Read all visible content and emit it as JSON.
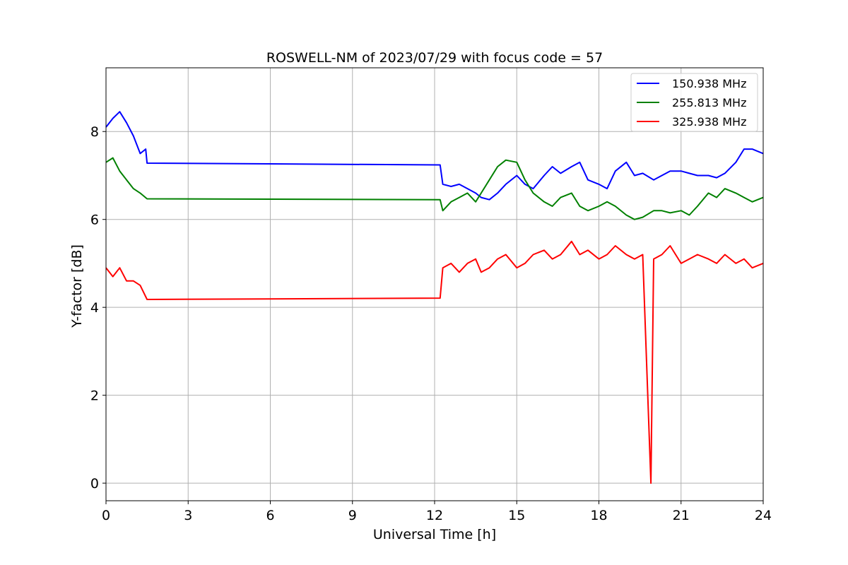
{
  "chart_data": {
    "type": "line",
    "title": "ROSWELL-NM of 2023/07/29 with focus code = 57",
    "xlabel": "Universal Time [h]",
    "ylabel": "Y-factor [dB]",
    "xlim": [
      0,
      24
    ],
    "ylim": [
      -0.4,
      9.45
    ],
    "x_ticks": [
      0,
      3,
      6,
      9,
      12,
      15,
      18,
      21,
      24
    ],
    "y_ticks": [
      0,
      2,
      4,
      6,
      8
    ],
    "grid": true,
    "legend_position": "top-right",
    "series": [
      {
        "name": "150.938 MHz",
        "color": "#0000ff",
        "points": [
          [
            0.0,
            8.1
          ],
          [
            0.25,
            8.3
          ],
          [
            0.5,
            8.45
          ],
          [
            0.75,
            8.2
          ],
          [
            1.0,
            7.9
          ],
          [
            1.25,
            7.5
          ],
          [
            1.45,
            7.6
          ],
          [
            1.5,
            7.28
          ],
          [
            12.2,
            7.24
          ],
          [
            12.3,
            6.8
          ],
          [
            12.6,
            6.75
          ],
          [
            12.9,
            6.8
          ],
          [
            13.2,
            6.7
          ],
          [
            13.5,
            6.6
          ],
          [
            13.7,
            6.5
          ],
          [
            14.0,
            6.45
          ],
          [
            14.3,
            6.6
          ],
          [
            14.6,
            6.8
          ],
          [
            15.0,
            7.0
          ],
          [
            15.3,
            6.8
          ],
          [
            15.6,
            6.7
          ],
          [
            16.0,
            7.0
          ],
          [
            16.3,
            7.2
          ],
          [
            16.6,
            7.05
          ],
          [
            17.0,
            7.2
          ],
          [
            17.3,
            7.3
          ],
          [
            17.6,
            6.9
          ],
          [
            18.0,
            6.8
          ],
          [
            18.3,
            6.7
          ],
          [
            18.6,
            7.1
          ],
          [
            19.0,
            7.3
          ],
          [
            19.3,
            7.0
          ],
          [
            19.6,
            7.05
          ],
          [
            20.0,
            6.9
          ],
          [
            20.3,
            7.0
          ],
          [
            20.6,
            7.1
          ],
          [
            21.0,
            7.1
          ],
          [
            21.3,
            7.05
          ],
          [
            21.6,
            7.0
          ],
          [
            22.0,
            7.0
          ],
          [
            22.3,
            6.95
          ],
          [
            22.6,
            7.05
          ],
          [
            23.0,
            7.3
          ],
          [
            23.3,
            7.6
          ],
          [
            23.6,
            7.6
          ],
          [
            24.0,
            7.5
          ]
        ]
      },
      {
        "name": "255.813 MHz",
        "color": "#008000",
        "points": [
          [
            0.0,
            7.3
          ],
          [
            0.25,
            7.4
          ],
          [
            0.5,
            7.1
          ],
          [
            0.75,
            6.9
          ],
          [
            1.0,
            6.7
          ],
          [
            1.25,
            6.6
          ],
          [
            1.5,
            6.47
          ],
          [
            12.2,
            6.45
          ],
          [
            12.3,
            6.2
          ],
          [
            12.6,
            6.4
          ],
          [
            12.9,
            6.5
          ],
          [
            13.2,
            6.6
          ],
          [
            13.5,
            6.4
          ],
          [
            13.7,
            6.6
          ],
          [
            14.0,
            6.9
          ],
          [
            14.3,
            7.2
          ],
          [
            14.6,
            7.35
          ],
          [
            15.0,
            7.3
          ],
          [
            15.3,
            6.9
          ],
          [
            15.6,
            6.6
          ],
          [
            16.0,
            6.4
          ],
          [
            16.3,
            6.3
          ],
          [
            16.6,
            6.5
          ],
          [
            17.0,
            6.6
          ],
          [
            17.3,
            6.3
          ],
          [
            17.6,
            6.2
          ],
          [
            18.0,
            6.3
          ],
          [
            18.3,
            6.4
          ],
          [
            18.6,
            6.3
          ],
          [
            19.0,
            6.1
          ],
          [
            19.3,
            6.0
          ],
          [
            19.6,
            6.05
          ],
          [
            20.0,
            6.2
          ],
          [
            20.3,
            6.2
          ],
          [
            20.6,
            6.15
          ],
          [
            21.0,
            6.2
          ],
          [
            21.3,
            6.1
          ],
          [
            21.6,
            6.3
          ],
          [
            22.0,
            6.6
          ],
          [
            22.3,
            6.5
          ],
          [
            22.6,
            6.7
          ],
          [
            23.0,
            6.6
          ],
          [
            23.3,
            6.5
          ],
          [
            23.6,
            6.4
          ],
          [
            24.0,
            6.5
          ]
        ]
      },
      {
        "name": "325.938 MHz",
        "color": "#ff0000",
        "points": [
          [
            0.0,
            4.9
          ],
          [
            0.25,
            4.7
          ],
          [
            0.5,
            4.9
          ],
          [
            0.75,
            4.6
          ],
          [
            1.0,
            4.6
          ],
          [
            1.25,
            4.5
          ],
          [
            1.5,
            4.18
          ],
          [
            12.2,
            4.21
          ],
          [
            12.3,
            4.9
          ],
          [
            12.6,
            5.0
          ],
          [
            12.9,
            4.8
          ],
          [
            13.2,
            5.0
          ],
          [
            13.5,
            5.1
          ],
          [
            13.7,
            4.8
          ],
          [
            14.0,
            4.9
          ],
          [
            14.3,
            5.1
          ],
          [
            14.6,
            5.2
          ],
          [
            15.0,
            4.9
          ],
          [
            15.3,
            5.0
          ],
          [
            15.6,
            5.2
          ],
          [
            16.0,
            5.3
          ],
          [
            16.3,
            5.1
          ],
          [
            16.6,
            5.2
          ],
          [
            17.0,
            5.5
          ],
          [
            17.3,
            5.2
          ],
          [
            17.6,
            5.3
          ],
          [
            18.0,
            5.1
          ],
          [
            18.3,
            5.2
          ],
          [
            18.6,
            5.4
          ],
          [
            19.0,
            5.2
          ],
          [
            19.3,
            5.1
          ],
          [
            19.6,
            5.2
          ],
          [
            19.9,
            0.0
          ],
          [
            20.0,
            5.1
          ],
          [
            20.3,
            5.2
          ],
          [
            20.6,
            5.4
          ],
          [
            21.0,
            5.0
          ],
          [
            21.3,
            5.1
          ],
          [
            21.6,
            5.2
          ],
          [
            22.0,
            5.1
          ],
          [
            22.3,
            5.0
          ],
          [
            22.6,
            5.2
          ],
          [
            23.0,
            5.0
          ],
          [
            23.3,
            5.1
          ],
          [
            23.6,
            4.9
          ],
          [
            24.0,
            5.0
          ]
        ]
      }
    ]
  }
}
